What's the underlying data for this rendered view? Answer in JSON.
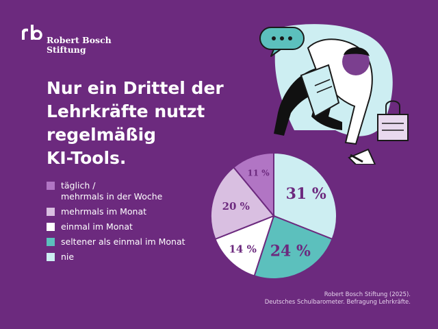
{
  "brand": {
    "name_line1": "Robert Bosch",
    "name_line2": "Stiftung"
  },
  "headline": [
    "Nur ein Drittel der",
    "Lehrkräfte nutzt",
    "regelmäßig",
    "KI-Tools."
  ],
  "legend": [
    {
      "label": "täglich /\nmehrmals in der Woche",
      "color": "#b175c4"
    },
    {
      "label": "mehrmals im Monat",
      "color": "#d9bfe1"
    },
    {
      "label": "einmal im Monat",
      "color": "#ffffff"
    },
    {
      "label": "seltener als einmal im Monat",
      "color": "#5cc0bd"
    },
    {
      "label": "nie",
      "color": "#cdeef2"
    }
  ],
  "source": {
    "line1": "Robert Bosch Stiftung (2025).",
    "line2": "Deutsches Schulbarometer. Befragung Lehrkräfte."
  },
  "colors": {
    "background": "#6c2a7e",
    "teal": "#5cc0bd",
    "light_cyan": "#cdeef2",
    "lilac": "#b175c4",
    "light_lilac": "#d9bfe1"
  },
  "chart_data": {
    "type": "pie",
    "start_angle_deg": 0,
    "direction": "clockwise",
    "slices": [
      {
        "category": "nie",
        "value": 31,
        "label": "31 %",
        "color": "#cdeef2"
      },
      {
        "category": "seltener als einmal im Monat",
        "value": 24,
        "label": "24 %",
        "color": "#5cc0bd"
      },
      {
        "category": "einmal im Monat",
        "value": 14,
        "label": "14 %",
        "color": "#ffffff"
      },
      {
        "category": "mehrmals im Monat",
        "value": 20,
        "label": "20 %",
        "color": "#d9bfe1"
      },
      {
        "category": "täglich / mehrmals in der Woche",
        "value": 11,
        "label": "11 %",
        "color": "#b175c4"
      }
    ]
  }
}
